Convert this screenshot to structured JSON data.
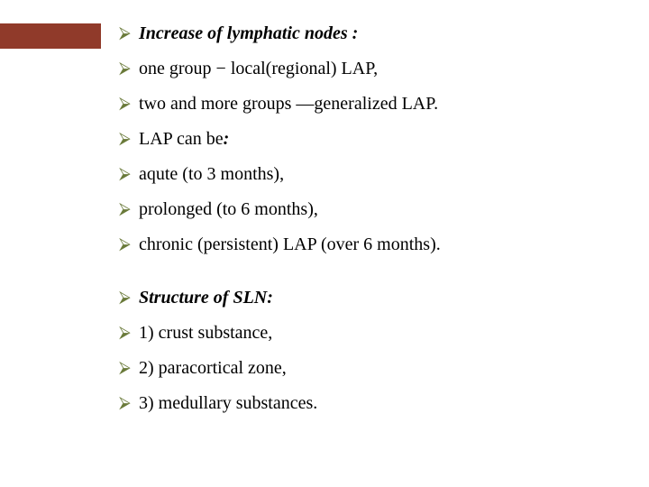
{
  "accent_color": "#903a2a",
  "bullet_color": "#6a7a3a",
  "bullet_glyph": "⮚",
  "text_color": "#000000",
  "items": [
    {
      "kind": "bi",
      "text": "Increase of lymphatic nodes :"
    },
    {
      "kind": "plain",
      "text": "one group − local(regional) LAP,"
    },
    {
      "kind": "plain",
      "text": "two and more groups —generalized LAP."
    },
    {
      "kind": "mixed",
      "pre": "LAP can be",
      "post": ":"
    },
    {
      "kind": "plain",
      "text": "aqute (to 3 months),"
    },
    {
      "kind": "plain",
      "text": "prolonged (to 6 months),"
    },
    {
      "kind": "plain",
      "text": "chronic (persistent) LAP (over 6 months)."
    },
    {
      "kind": "spacer"
    },
    {
      "kind": "bi",
      "text": "Structure of SLN:"
    },
    {
      "kind": "plain",
      "text": " 1)  crust  substance,"
    },
    {
      "kind": "plain",
      "text": "2) paracortical  zone,"
    },
    {
      "kind": "plain",
      "text": "3) medullary  substances."
    }
  ]
}
